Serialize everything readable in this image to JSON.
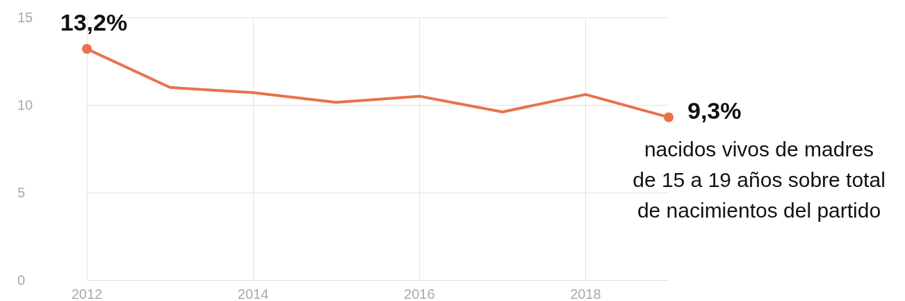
{
  "chart_data": {
    "type": "line",
    "x": [
      2012,
      2013,
      2014,
      2015,
      2016,
      2017,
      2018,
      2019
    ],
    "values": [
      13.2,
      11.0,
      10.7,
      10.15,
      10.5,
      9.6,
      10.6,
      9.3
    ],
    "value_labels": [
      "13,2%",
      null,
      null,
      null,
      null,
      null,
      null,
      "9,3%"
    ],
    "color": "#e8734a",
    "xlim": [
      2012,
      2019
    ],
    "xticks": [
      2012,
      2014,
      2016,
      2018
    ],
    "ylim": [
      0,
      15
    ],
    "yticks": [
      0,
      5,
      10,
      15
    ],
    "grid": true,
    "line_style": "solid",
    "annotations": [
      {
        "text": "nacidos vivos de madres\nde 15 a 19 años sobre total\nde nacimientos del partido",
        "x": 2019,
        "y": 9.3
      }
    ]
  }
}
